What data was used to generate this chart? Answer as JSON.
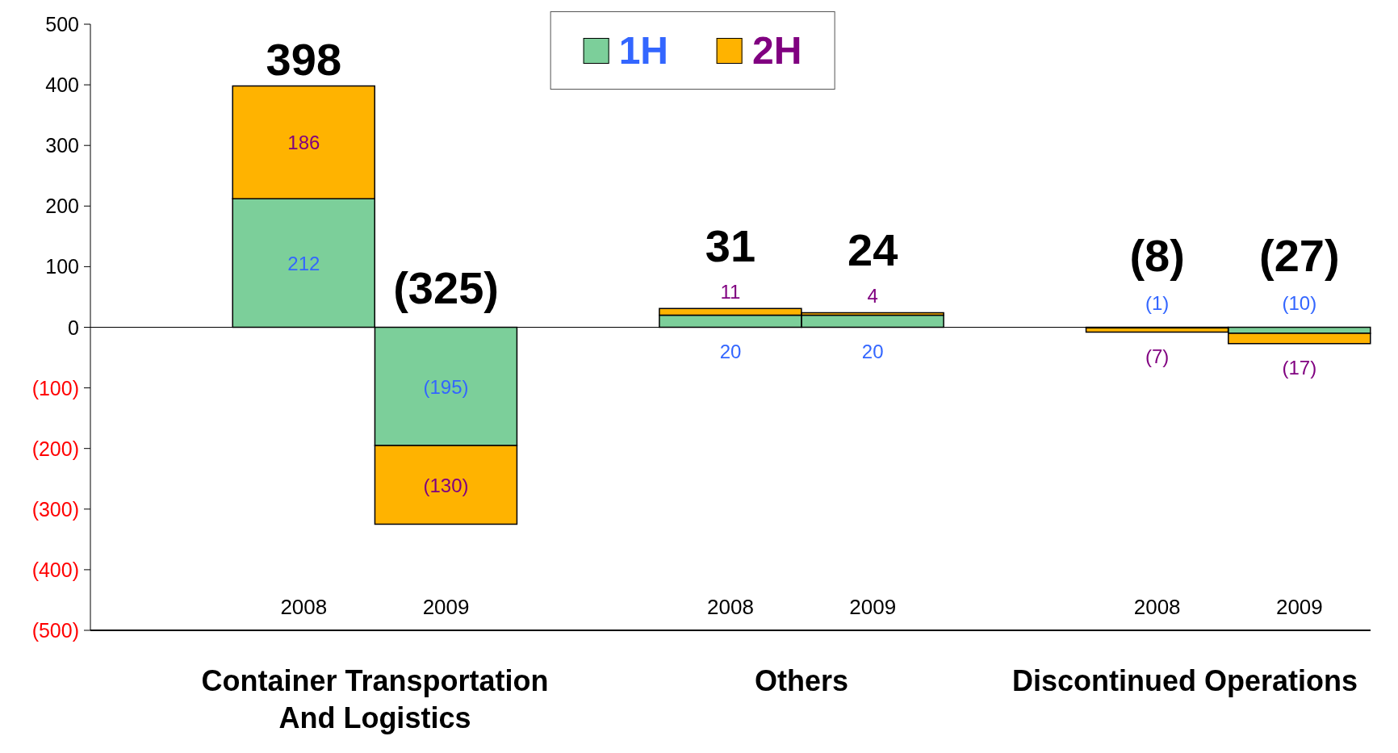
{
  "chart_data": {
    "type": "bar",
    "stacked": true,
    "categories": [
      null,
      "2008",
      "2009",
      null,
      "2008",
      "2009",
      null,
      "2008",
      "2009"
    ],
    "series": [
      {
        "name": "1H",
        "color": "#7ccf9a",
        "values": [
          null,
          212,
          -195,
          null,
          20,
          20,
          null,
          -1,
          -10
        ],
        "value_labels": [
          null,
          "212",
          "(195)",
          null,
          "20",
          "20",
          null,
          "(1)",
          "(10)"
        ]
      },
      {
        "name": "2H",
        "color": "#ffb300",
        "values": [
          null,
          186,
          -130,
          null,
          11,
          4,
          null,
          -7,
          -17
        ],
        "value_labels": [
          null,
          "186",
          "(130)",
          null,
          "11",
          "4",
          null,
          "(7)",
          "(17)"
        ]
      }
    ],
    "totals": [
      null,
      "398",
      "(325)",
      null,
      "31",
      "24",
      null,
      "(8)",
      "(27)"
    ],
    "ylim": [
      -500,
      500
    ],
    "yticks": [
      {
        "value": -500,
        "label": "(500)"
      },
      {
        "value": -400,
        "label": "(400)"
      },
      {
        "value": -300,
        "label": "(300)"
      },
      {
        "value": -200,
        "label": "(200)"
      },
      {
        "value": -100,
        "label": "(100)"
      },
      0,
      100,
      200,
      300,
      400,
      500
    ],
    "ref_lines": [
      {
        "axis": "y",
        "value": 0,
        "color": "#000000"
      }
    ],
    "annotations": [
      "Container Transportation And Logistics",
      "Others",
      "Discontinued Operations"
    ],
    "legend": "top",
    "grid": false
  }
}
